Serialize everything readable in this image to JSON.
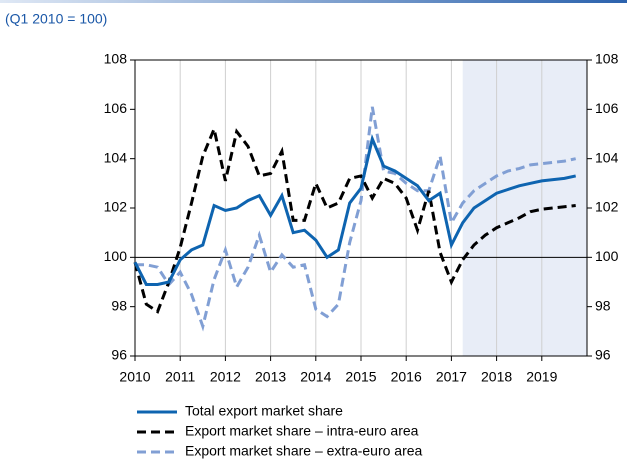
{
  "chart_data": {
    "type": "line",
    "subtitle": "(Q1 2010 = 100)",
    "x": [
      2010,
      2010.25,
      2010.5,
      2010.75,
      2011,
      2011.25,
      2011.5,
      2011.75,
      2012,
      2012.25,
      2012.5,
      2012.75,
      2013,
      2013.25,
      2013.5,
      2013.75,
      2014,
      2014.25,
      2014.5,
      2014.75,
      2015,
      2015.25,
      2015.5,
      2015.75,
      2016,
      2016.25,
      2016.5,
      2016.75,
      2017,
      2017.25,
      2017.5,
      2017.75,
      2018,
      2018.25,
      2018.5,
      2018.75,
      2019,
      2019.25,
      2019.5,
      2019.75
    ],
    "series": [
      {
        "name": "Total export market share",
        "color": "#0e64b0",
        "dash": "solid",
        "values": [
          99.8,
          98.9,
          98.9,
          99.0,
          99.9,
          100.3,
          100.5,
          102.1,
          101.9,
          102.0,
          102.3,
          102.5,
          101.7,
          102.5,
          101.0,
          101.1,
          100.7,
          100.0,
          100.3,
          102.2,
          102.8,
          104.8,
          103.7,
          103.5,
          103.2,
          102.9,
          102.3,
          102.6,
          100.5,
          101.4,
          102.0,
          102.3,
          102.6,
          102.75,
          102.9,
          103.0,
          103.1,
          103.15,
          103.2,
          103.3
        ]
      },
      {
        "name": "Export market share – intra-euro area",
        "color": "#000000",
        "dash": "dashed",
        "values": [
          99.8,
          98.1,
          97.8,
          99.0,
          100.4,
          102.2,
          104.1,
          105.2,
          103.1,
          105.1,
          104.5,
          103.3,
          103.4,
          104.3,
          101.5,
          101.5,
          103.0,
          102.0,
          102.2,
          103.2,
          103.3,
          102.4,
          103.2,
          103.0,
          102.4,
          101.1,
          102.7,
          100.2,
          99.0,
          99.9,
          100.5,
          100.9,
          101.2,
          101.4,
          101.6,
          101.85,
          101.95,
          102.0,
          102.05,
          102.1
        ]
      },
      {
        "name": "Export market share – extra-euro area",
        "color": "#819fd4",
        "dash": "dashed",
        "values": [
          99.7,
          99.7,
          99.6,
          98.9,
          99.4,
          98.5,
          97.2,
          99.1,
          100.3,
          98.8,
          99.6,
          100.9,
          99.4,
          100.1,
          99.6,
          99.7,
          97.9,
          97.6,
          98.1,
          100.6,
          102.3,
          106.1,
          103.5,
          103.4,
          103.0,
          102.7,
          102.7,
          104.1,
          101.4,
          102.2,
          102.7,
          103.0,
          103.3,
          103.5,
          103.6,
          103.75,
          103.8,
          103.85,
          103.9,
          104.0
        ]
      }
    ],
    "xlim": [
      2010,
      2020
    ],
    "xticks": [
      2010,
      2011,
      2012,
      2013,
      2014,
      2015,
      2016,
      2017,
      2018,
      2019
    ],
    "ylim": [
      96,
      108
    ],
    "yticks": [
      96,
      98,
      100,
      102,
      104,
      106,
      108
    ],
    "y2lim": [
      96,
      108
    ],
    "y2ticks": [
      96,
      98,
      100,
      102,
      104,
      106,
      108
    ],
    "reference_line": 100,
    "shaded_region": [
      2017.25,
      2020
    ],
    "grid": "x",
    "legend": "bottom"
  }
}
